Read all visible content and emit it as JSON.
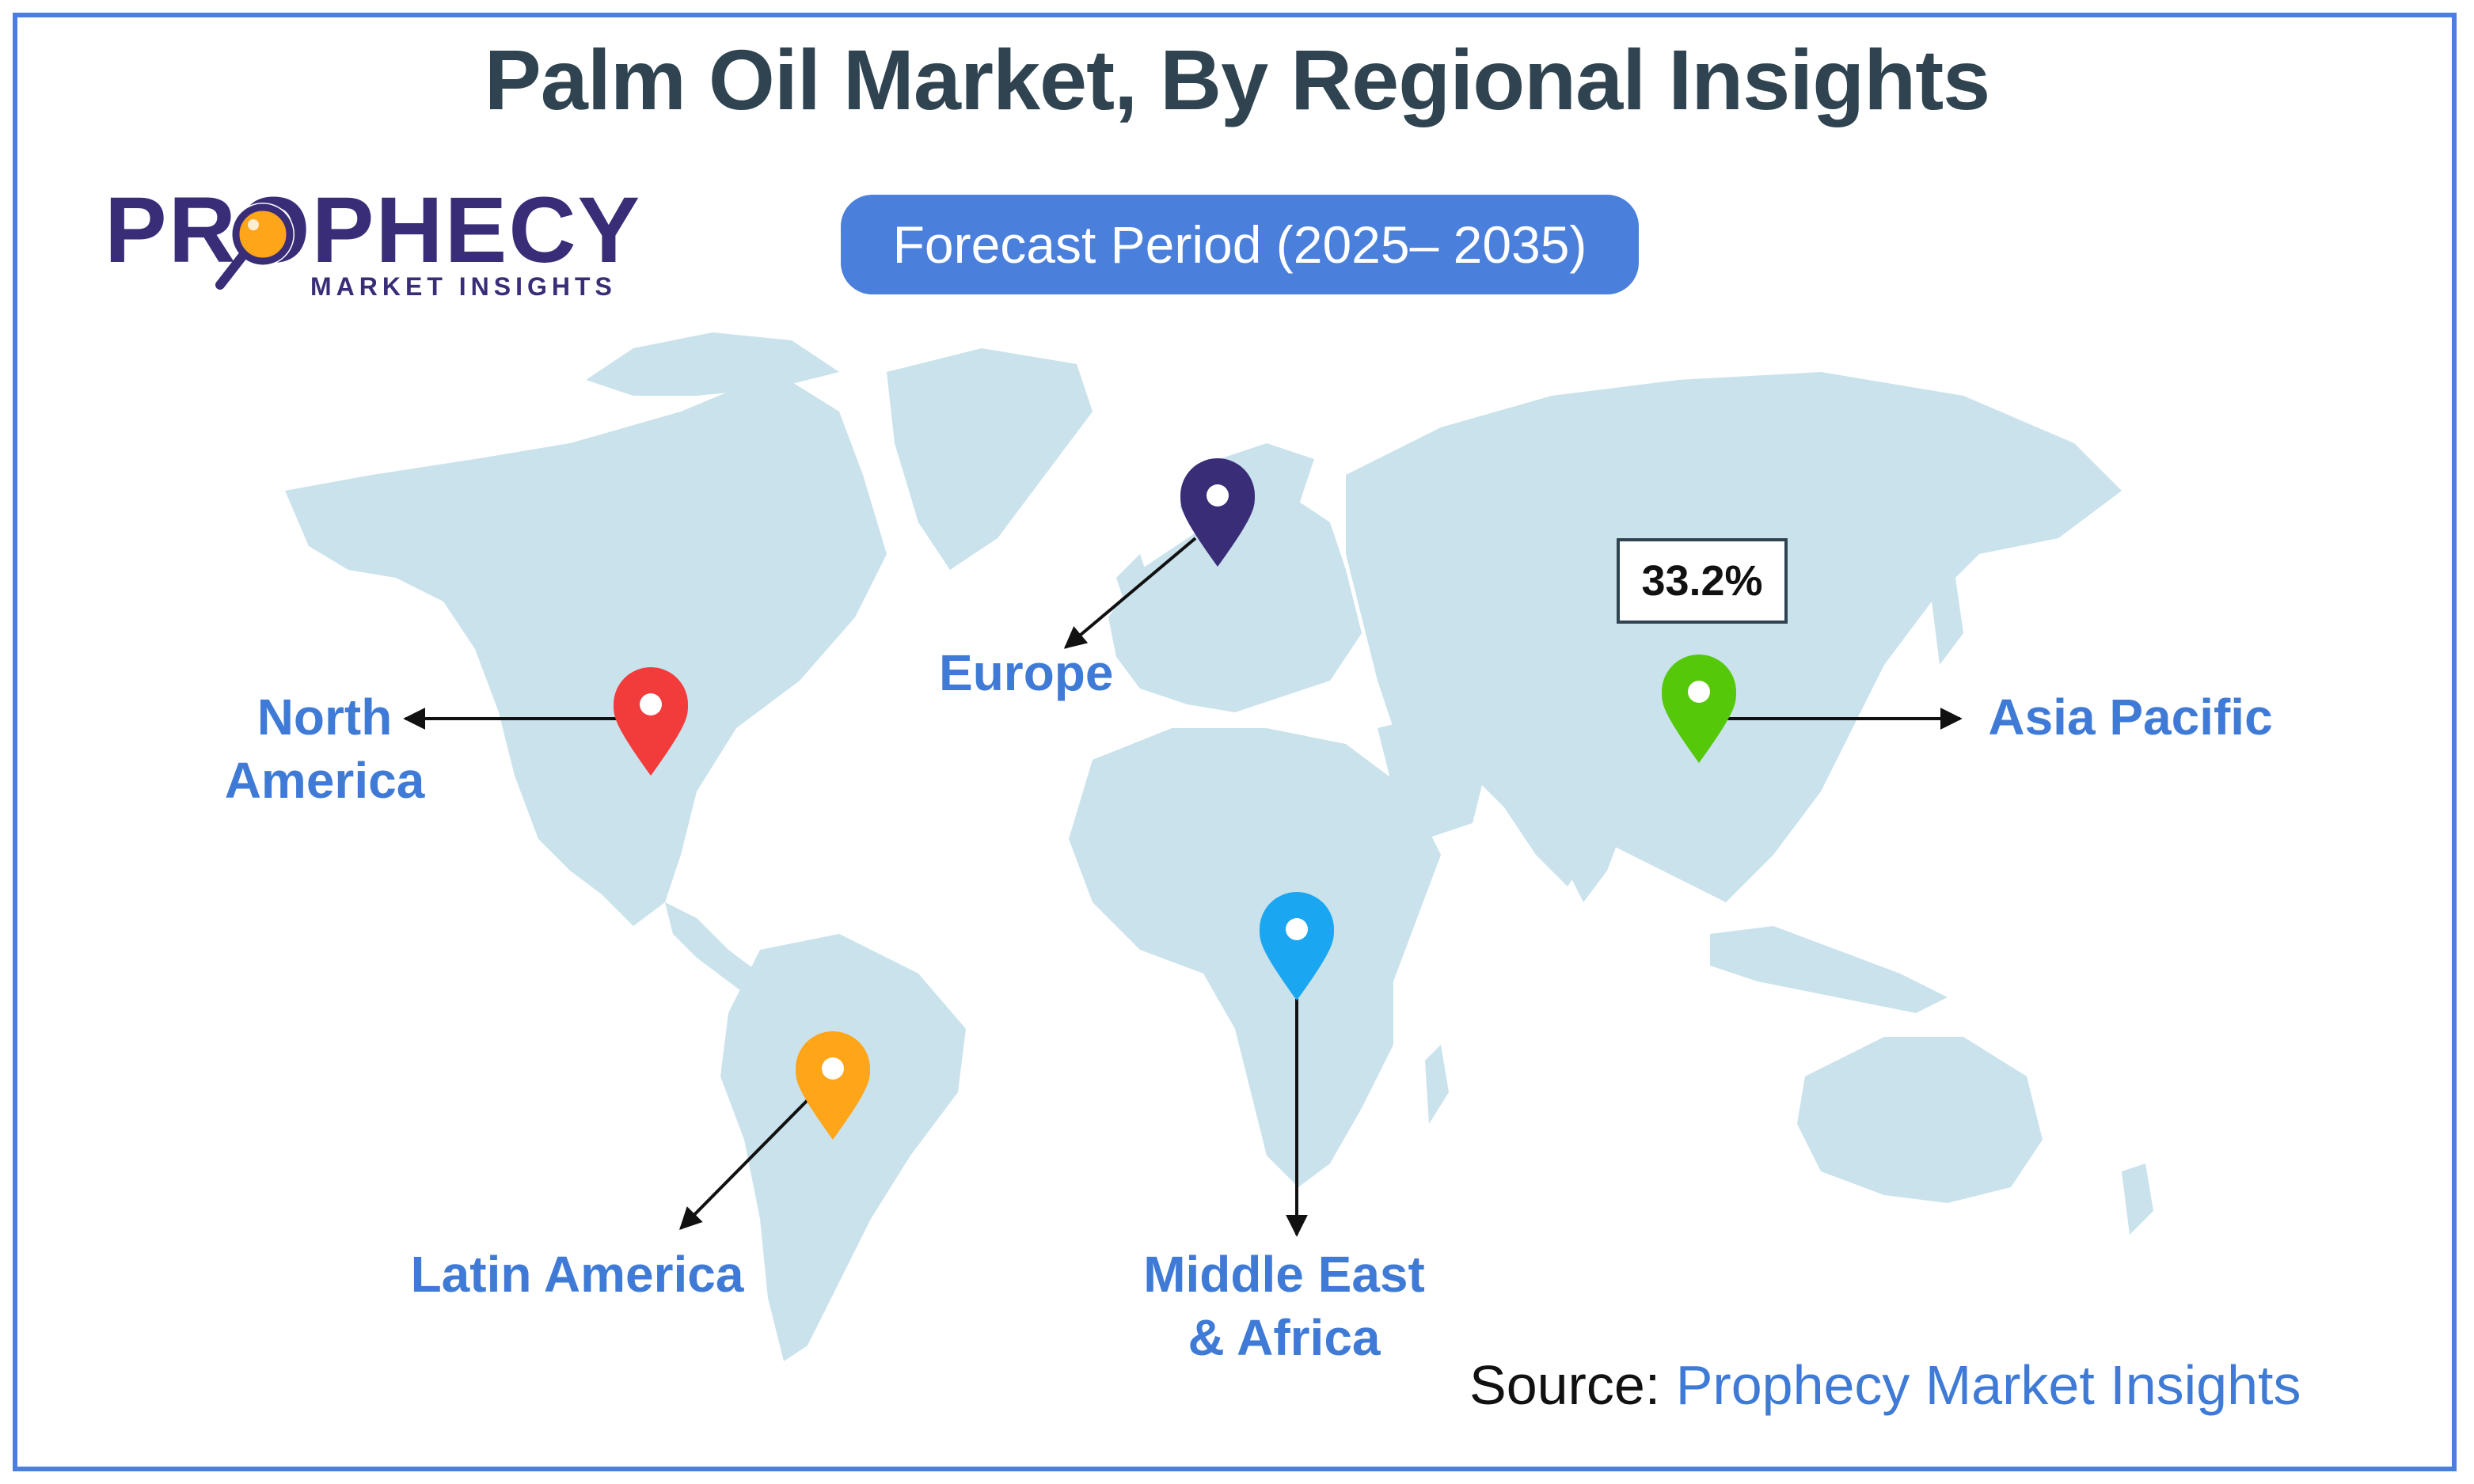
{
  "title": "Palm Oil Market, By Regional Insights",
  "forecast_period": "Forecast Period (2025– 2035)",
  "logo": {
    "name": "PROPHECY",
    "tagline": "MARKET INSIGHTS"
  },
  "colors": {
    "border": "#4a7fdc",
    "title": "#2f4450",
    "accent": "#3f7bd6",
    "land": "#c9e2ec",
    "logo": "#3a2d78"
  },
  "regions": [
    {
      "id": "north-america",
      "label": "North America",
      "pin_color": "#f23b3b"
    },
    {
      "id": "europe",
      "label": "Europe",
      "pin_color": "#3a2d78"
    },
    {
      "id": "asia-pacific",
      "label": "Asia Pacific",
      "pin_color": "#55c80a",
      "value": "33.2%"
    },
    {
      "id": "latin-america",
      "label": "Latin America",
      "pin_color": "#ffa51a"
    },
    {
      "id": "middle-east-africa",
      "label": "Middle East & Africa",
      "pin_color": "#1aa6f0"
    }
  ],
  "source": {
    "label": "Source:",
    "value": "Prophecy Market Insights"
  }
}
